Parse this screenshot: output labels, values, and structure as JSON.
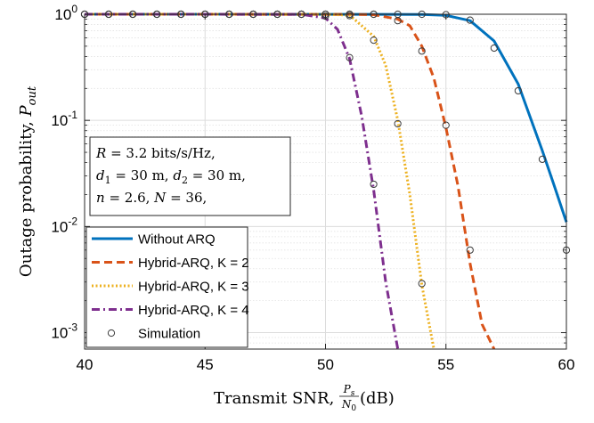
{
  "chart_data": {
    "type": "line",
    "y_scale": "log",
    "grid": true,
    "xlim": [
      40,
      60
    ],
    "ylim": [
      0.0007,
      1
    ],
    "x_ticks": [
      40,
      45,
      50,
      55,
      60
    ],
    "x_tick_labels": [
      "40",
      "45",
      "50",
      "55",
      "60"
    ],
    "y_ticks": [
      1,
      0.1,
      0.01,
      0.001
    ],
    "y_tick_labels": [
      {
        "base": "10",
        "exp": "0"
      },
      {
        "base": "10",
        "exp": "-1"
      },
      {
        "base": "10",
        "exp": "-2"
      },
      {
        "base": "10",
        "exp": "-3"
      }
    ],
    "xlabel": {
      "prefix": "Transmit SNR, ",
      "frac_num": "P",
      "frac_num_sub": "s",
      "frac_den": "N",
      "frac_den_sub": "0",
      "suffix": " (dB)"
    },
    "ylabel": {
      "prefix": "Outage probability, ",
      "var": "P",
      "sub": "out"
    },
    "annotation": [
      {
        "parts": [
          {
            "t": "R",
            "i": true
          },
          {
            "t": " = 3.2 bits/s/Hz,"
          }
        ]
      },
      {
        "parts": [
          {
            "t": "d",
            "i": true
          },
          {
            "t": "1",
            "s": true
          },
          {
            "t": " = 30 m, "
          },
          {
            "t": "d",
            "i": true
          },
          {
            "t": "2",
            "s": true
          },
          {
            "t": " = 30 m,"
          }
        ]
      },
      {
        "parts": [
          {
            "t": "n",
            "i": true
          },
          {
            "t": " = 2.6, "
          },
          {
            "t": "N",
            "i": true
          },
          {
            "t": " = 36,"
          }
        ]
      }
    ],
    "legend_position": "bottom-left",
    "legend": [
      {
        "label": "Without ARQ",
        "color": "#0072BD",
        "dash": "solid",
        "marker": false
      },
      {
        "label": "Hybrid-ARQ, K = 2",
        "color": "#D95319",
        "dash": "dashed",
        "marker": false
      },
      {
        "label": "Hybrid-ARQ, K = 3",
        "color": "#EDB120",
        "dash": "dotted",
        "marker": false
      },
      {
        "label": "Hybrid-ARQ, K = 4",
        "color": "#7E2F8E",
        "dash": "dashdot",
        "marker": false
      },
      {
        "label": "Simulation",
        "color": "#000000",
        "dash": "none",
        "marker": true
      }
    ],
    "series": [
      {
        "name": "Without ARQ",
        "color": "#0072BD",
        "dash": "solid",
        "x": [
          40,
          52,
          54,
          55,
          56,
          57,
          58,
          59,
          59.5,
          60
        ],
        "y": [
          1,
          0.999,
          0.994,
          0.975,
          0.87,
          0.56,
          0.22,
          0.052,
          0.024,
          0.011
        ]
      },
      {
        "name": "Hybrid-ARQ, K = 2",
        "color": "#D95319",
        "dash": "dashed",
        "x": [
          40,
          51,
          52,
          53,
          53.5,
          54,
          54.5,
          55,
          55.5,
          56,
          56.5,
          57
        ],
        "y": [
          1,
          0.999,
          0.99,
          0.9,
          0.78,
          0.5,
          0.25,
          0.085,
          0.024,
          0.0045,
          0.0012,
          0.0007
        ]
      },
      {
        "name": "Hybrid-ARQ, K = 3",
        "color": "#EDB120",
        "dash": "dotted",
        "x": [
          40,
          50,
          51,
          52,
          52.5,
          53,
          53.5,
          54,
          54.5
        ],
        "y": [
          1,
          0.999,
          0.98,
          0.62,
          0.33,
          0.1,
          0.02,
          0.0028,
          0.0007
        ]
      },
      {
        "name": "Hybrid-ARQ, K = 4",
        "color": "#7E2F8E",
        "dash": "dashdot",
        "x": [
          40,
          49,
          50,
          50.5,
          51,
          51.5,
          52,
          52.5,
          53
        ],
        "y": [
          1,
          0.999,
          0.92,
          0.72,
          0.38,
          0.11,
          0.022,
          0.003,
          0.0007
        ]
      }
    ],
    "simulation": {
      "name": "Simulation",
      "x": [
        40,
        41,
        42,
        43,
        44,
        45,
        46,
        47,
        48,
        49,
        50,
        51,
        52,
        53,
        54,
        40,
        41,
        42,
        43,
        44,
        45,
        46,
        47,
        48,
        49,
        50,
        51,
        52,
        53,
        54,
        55,
        56,
        40,
        41,
        42,
        43,
        44,
        45,
        46,
        47,
        48,
        49,
        50,
        51,
        52,
        53,
        54,
        40,
        41,
        42,
        43,
        44,
        45,
        46,
        47,
        48,
        49,
        50,
        51,
        52,
        55,
        56,
        57,
        58,
        59,
        60
      ],
      "y": [
        1,
        1,
        1,
        1,
        1,
        1,
        1,
        1,
        1,
        1,
        1,
        1,
        1,
        1,
        1,
        1,
        1,
        1,
        1,
        1,
        1,
        1,
        1,
        1,
        1,
        1,
        1,
        1,
        0.87,
        0.45,
        0.09,
        0.006,
        1,
        1,
        1,
        1,
        1,
        1,
        1,
        1,
        1,
        1,
        1,
        0.97,
        0.57,
        0.093,
        0.0029,
        1,
        1,
        1,
        1,
        1,
        1,
        1,
        1,
        1,
        1,
        0.96,
        0.39,
        0.025,
        0.99,
        0.88,
        0.48,
        0.19,
        0.043,
        0.006
      ]
    }
  }
}
